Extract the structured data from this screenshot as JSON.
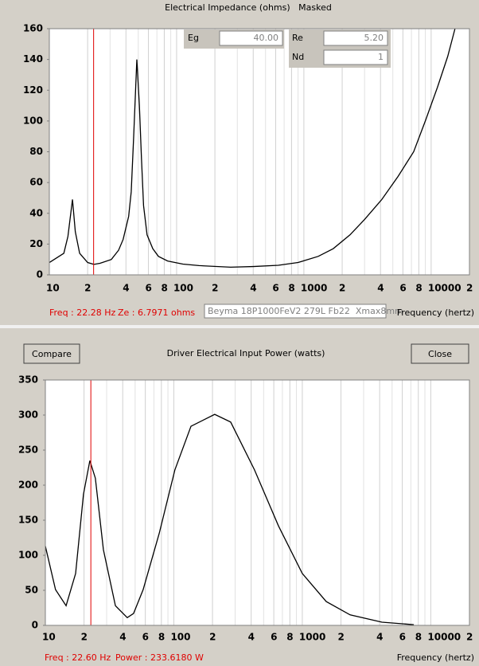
{
  "chart_data": [
    {
      "type": "line",
      "title": "Electrical Impedance (ohms)   Masked",
      "xlabel": "Frequency (hertz)",
      "xscale": "log",
      "xlim": [
        10,
        20000
      ],
      "ylim": [
        0,
        160
      ],
      "yticks": [
        0,
        20,
        40,
        60,
        80,
        100,
        120,
        140,
        160
      ],
      "xticks": [
        10,
        {
          "value": 20,
          "label": "2"
        },
        {
          "value": 40,
          "label": "4"
        },
        {
          "value": 60,
          "label": "6"
        },
        {
          "value": 80,
          "label": "8"
        },
        100,
        {
          "value": 200,
          "label": "2"
        },
        {
          "value": 400,
          "label": "4"
        },
        {
          "value": 600,
          "label": "6"
        },
        {
          "value": 800,
          "label": "8"
        },
        1000,
        {
          "value": 2000,
          "label": "2"
        },
        {
          "value": 4000,
          "label": "4"
        },
        {
          "value": 6000,
          "label": "6"
        },
        {
          "value": 8000,
          "label": "8"
        },
        10000,
        {
          "value": 20000,
          "label": "2"
        }
      ],
      "xgrid_minor": [
        30,
        50,
        70,
        90,
        300,
        500,
        700,
        900,
        3000,
        5000,
        7000,
        9000
      ],
      "xgrid": true,
      "color": "#000000",
      "cursor_color": "#e00000",
      "cursor": 22.28,
      "x": [
        10,
        13,
        14,
        15.2,
        16,
        17.3,
        20,
        22.4,
        25,
        30.7,
        35,
        38,
        42,
        44,
        46,
        48.7,
        51,
        53,
        55,
        58.6,
        65,
        72,
        85,
        112,
        150,
        266,
        400,
        630,
        900,
        1296,
        1700,
        2304,
        3000,
        4097,
        5500,
        7290,
        9000,
        11220,
        13500,
        15400
      ],
      "values": [
        8,
        14,
        25,
        49,
        28,
        14,
        8,
        6.8,
        7.5,
        10,
        16,
        23,
        38,
        54,
        90,
        140,
        110,
        75,
        45,
        26,
        17,
        12,
        9,
        7,
        6,
        5,
        5.4,
        6.2,
        8,
        12,
        17,
        26,
        36,
        49,
        64,
        80,
        100,
        122,
        142,
        160
      ]
    },
    {
      "type": "line",
      "title": "Driver Electrical Input Power (watts)",
      "xlabel": "Frequency (hertz)",
      "xscale": "log",
      "xlim": [
        10,
        20000
      ],
      "ylim": [
        0,
        350
      ],
      "yticks": [
        0,
        50,
        100,
        150,
        200,
        250,
        300,
        350
      ],
      "xticks": [
        10,
        {
          "value": 20,
          "label": "2"
        },
        {
          "value": 40,
          "label": "4"
        },
        {
          "value": 60,
          "label": "6"
        },
        {
          "value": 80,
          "label": "8"
        },
        100,
        {
          "value": 200,
          "label": "2"
        },
        {
          "value": 400,
          "label": "4"
        },
        {
          "value": 600,
          "label": "6"
        },
        {
          "value": 800,
          "label": "8"
        },
        1000,
        {
          "value": 2000,
          "label": "2"
        },
        {
          "value": 4000,
          "label": "4"
        },
        {
          "value": 6000,
          "label": "6"
        },
        {
          "value": 8000,
          "label": "8"
        },
        10000,
        {
          "value": 20000,
          "label": "2"
        }
      ],
      "xgrid_minor": [
        30,
        50,
        70,
        90,
        300,
        500,
        700,
        900,
        3000,
        5000,
        7000,
        9000
      ],
      "xgrid": true,
      "color": "#000000",
      "cursor_color": "#e00000",
      "cursor": 22.6,
      "x": [
        10,
        12,
        14.5,
        17.2,
        19.8,
        22.2,
        24.5,
        28.3,
        35.1,
        43.4,
        48.6,
        57.7,
        76.9,
        102,
        136,
        208,
        277,
        424,
        652,
        1000,
        1535,
        2355,
        4170,
        7380
      ],
      "values": [
        113,
        51,
        28,
        74,
        187,
        235,
        210,
        108,
        28,
        11,
        17,
        51,
        131,
        222,
        284,
        301,
        290,
        222,
        142,
        74,
        34,
        15,
        4.5,
        1
      ]
    }
  ],
  "windows": [
    {
      "fields": [
        {
          "label": "Eg",
          "value": "40.00"
        },
        {
          "label": "Re",
          "value": "5.20"
        },
        {
          "label": "Nd",
          "value": "1"
        }
      ],
      "status": [
        "Freq : 22.28 Hz",
        "Ze : 6.7971 ohms"
      ],
      "driver": "Beyma 18P1000FeV2 279L Fb22  Xmax8mm"
    },
    {
      "buttons": [
        "Compare",
        "Close"
      ],
      "status": [
        "Freq : 22.60 Hz",
        "Power : 233.6180 W"
      ]
    }
  ]
}
